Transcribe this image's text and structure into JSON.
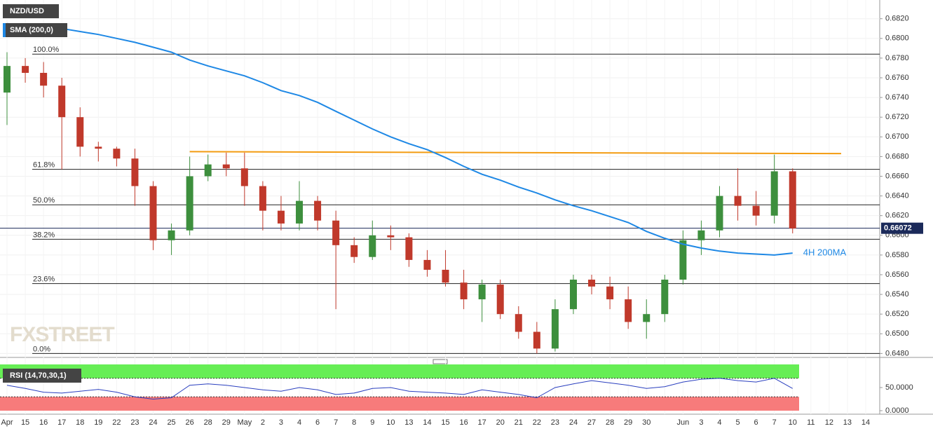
{
  "chart_data": {
    "type": "candlestick",
    "title": "NZD/USD",
    "categories": [
      "Apr",
      "15",
      "16",
      "17",
      "18",
      "19",
      "22",
      "23",
      "24",
      "25",
      "26",
      "28",
      "29",
      "May",
      "2",
      "3",
      "4",
      "6",
      "7",
      "8",
      "9",
      "10",
      "13",
      "14",
      "15",
      "16",
      "17",
      "20",
      "21",
      "22",
      "23",
      "24",
      "27",
      "28",
      "29",
      "30",
      null,
      "Jun",
      "3",
      "4",
      "5",
      "6",
      "7",
      "10",
      "11",
      "12",
      "13",
      "14"
    ],
    "open": [
      0.6745,
      0.6772,
      0.6765,
      0.6752,
      0.672,
      0.669,
      0.6688,
      0.6678,
      0.665,
      0.6595,
      0.6605,
      0.666,
      0.6672,
      0.6668,
      0.665,
      0.6625,
      0.6612,
      0.6635,
      0.6615,
      0.659,
      0.6578,
      0.66,
      0.6598,
      0.6575,
      0.6565,
      0.6552,
      0.6535,
      0.655,
      0.652,
      0.6502,
      0.6485,
      0.6525,
      0.6555,
      0.6548,
      0.6535,
      0.6512,
      0.652,
      0.6555,
      0.6595,
      0.6605,
      0.664,
      0.663,
      0.662,
      0.6665,
      null,
      null,
      null,
      null
    ],
    "high": [
      0.6786,
      0.678,
      0.6776,
      0.676,
      0.673,
      0.6695,
      0.669,
      0.6688,
      0.6655,
      0.6612,
      0.668,
      0.6682,
      0.6684,
      0.6684,
      0.6655,
      0.664,
      0.6655,
      0.664,
      0.6625,
      0.6598,
      0.6615,
      0.661,
      0.6602,
      0.6585,
      0.6585,
      0.6565,
      0.6555,
      0.6555,
      0.6528,
      0.6512,
      0.6535,
      0.656,
      0.656,
      0.6558,
      0.6548,
      0.6535,
      0.656,
      0.6605,
      0.6615,
      0.665,
      0.6668,
      0.6645,
      0.6682,
      0.6668,
      null,
      null,
      null,
      null
    ],
    "low": [
      0.6712,
      0.6755,
      0.674,
      0.6667,
      0.668,
      0.6675,
      0.667,
      0.663,
      0.6585,
      0.658,
      0.66,
      0.6655,
      0.666,
      0.663,
      0.6605,
      0.6605,
      0.6605,
      0.6605,
      0.6525,
      0.6572,
      0.6575,
      0.6585,
      0.6568,
      0.6558,
      0.6548,
      0.6525,
      0.6512,
      0.6515,
      0.6495,
      0.648,
      0.6482,
      0.652,
      0.654,
      0.6525,
      0.6505,
      0.6495,
      0.6512,
      0.655,
      0.658,
      0.6598,
      0.6615,
      0.661,
      0.6612,
      0.6602,
      null,
      null,
      null,
      null
    ],
    "close": [
      0.6772,
      0.6765,
      0.6752,
      0.672,
      0.669,
      0.6688,
      0.6678,
      0.665,
      0.6595,
      0.6605,
      0.666,
      0.6672,
      0.6668,
      0.665,
      0.6625,
      0.6612,
      0.6635,
      0.6615,
      0.659,
      0.6578,
      0.66,
      0.6598,
      0.6575,
      0.6565,
      0.6552,
      0.6535,
      0.655,
      0.652,
      0.6502,
      0.6485,
      0.6525,
      0.6555,
      0.6548,
      0.6535,
      0.6512,
      0.652,
      0.6555,
      0.6595,
      0.6605,
      0.664,
      0.663,
      0.662,
      0.6665,
      0.6607,
      null,
      null,
      null,
      null
    ],
    "up_color": "#3d8f3d",
    "down_color": "#c0392b",
    "sma": {
      "name": "SMA (200,0)",
      "label": "4H 200MA",
      "color": "#1e88e5",
      "values": [
        0.6815,
        0.6813,
        0.6811,
        0.681,
        0.6807,
        0.6804,
        0.68,
        0.6796,
        0.6791,
        0.6786,
        0.6778,
        0.6772,
        0.6767,
        0.6762,
        0.6755,
        0.6747,
        0.6742,
        0.6735,
        0.6726,
        0.6717,
        0.6708,
        0.67,
        0.6693,
        0.6687,
        0.6679,
        0.667,
        0.6662,
        0.6656,
        0.6649,
        0.6643,
        0.6636,
        0.663,
        0.6625,
        0.6619,
        0.6613,
        0.6604,
        0.6597,
        0.6591,
        0.6587,
        0.6584,
        0.6582,
        0.6581,
        0.658,
        0.6582,
        null,
        null,
        null,
        null
      ]
    },
    "fib_levels": [
      {
        "label": "100.0%",
        "value": 0.6784
      },
      {
        "label": "61.8%",
        "value": 0.6667
      },
      {
        "label": "50.0%",
        "value": 0.6631
      },
      {
        "label": "38.2%",
        "value": 0.6596
      },
      {
        "label": "23.6%",
        "value": 0.6551
      },
      {
        "label": "0.0%",
        "value": 0.648
      }
    ],
    "resistance": {
      "color": "#f39c12",
      "values": [
        0.6685,
        0.6683
      ]
    },
    "last_price": 0.66072,
    "ylim": [
      0.6476,
      0.6839
    ],
    "yticks": [
      {
        "value": 0.648,
        "label": "0.6480"
      },
      {
        "value": 0.65,
        "label": "0.6500"
      },
      {
        "value": 0.652,
        "label": "0.6520"
      },
      {
        "value": 0.654,
        "label": "0.6540"
      },
      {
        "value": 0.656,
        "label": "0.6560"
      },
      {
        "value": 0.658,
        "label": "0.6580"
      },
      {
        "value": 0.66,
        "label": "0.6600"
      },
      {
        "value": 0.662,
        "label": "0.6620"
      },
      {
        "value": 0.664,
        "label": "0.6640"
      },
      {
        "value": 0.666,
        "label": "0.6660"
      },
      {
        "value": 0.668,
        "label": "0.6680"
      },
      {
        "value": 0.67,
        "label": "0.6700"
      },
      {
        "value": 0.672,
        "label": "0.6720"
      },
      {
        "value": 0.674,
        "label": "0.6740"
      },
      {
        "value": 0.676,
        "label": "0.6760"
      },
      {
        "value": 0.678,
        "label": "0.6780"
      },
      {
        "value": 0.68,
        "label": "0.6800"
      },
      {
        "value": 0.682,
        "label": "0.6820"
      }
    ],
    "grid": true,
    "watermark": "FXSTREET",
    "rsi": {
      "name": "RSI (14,70,30,1)",
      "color": "#2a3fbf",
      "values": [
        55,
        48,
        40,
        38,
        42,
        46,
        40,
        30,
        25,
        28,
        55,
        58,
        55,
        50,
        45,
        42,
        50,
        45,
        35,
        38,
        48,
        50,
        42,
        40,
        38,
        35,
        45,
        40,
        35,
        28,
        50,
        58,
        65,
        60,
        55,
        48,
        52,
        62,
        68,
        70,
        65,
        62,
        70,
        48,
        null,
        null,
        null,
        null
      ],
      "ylim": [
        0,
        100
      ],
      "yticks": [
        {
          "value": 50,
          "label": "50.0000"
        },
        {
          "value": 0,
          "label": "0.0000"
        }
      ],
      "overbought": 70,
      "oversold": 30
    }
  }
}
